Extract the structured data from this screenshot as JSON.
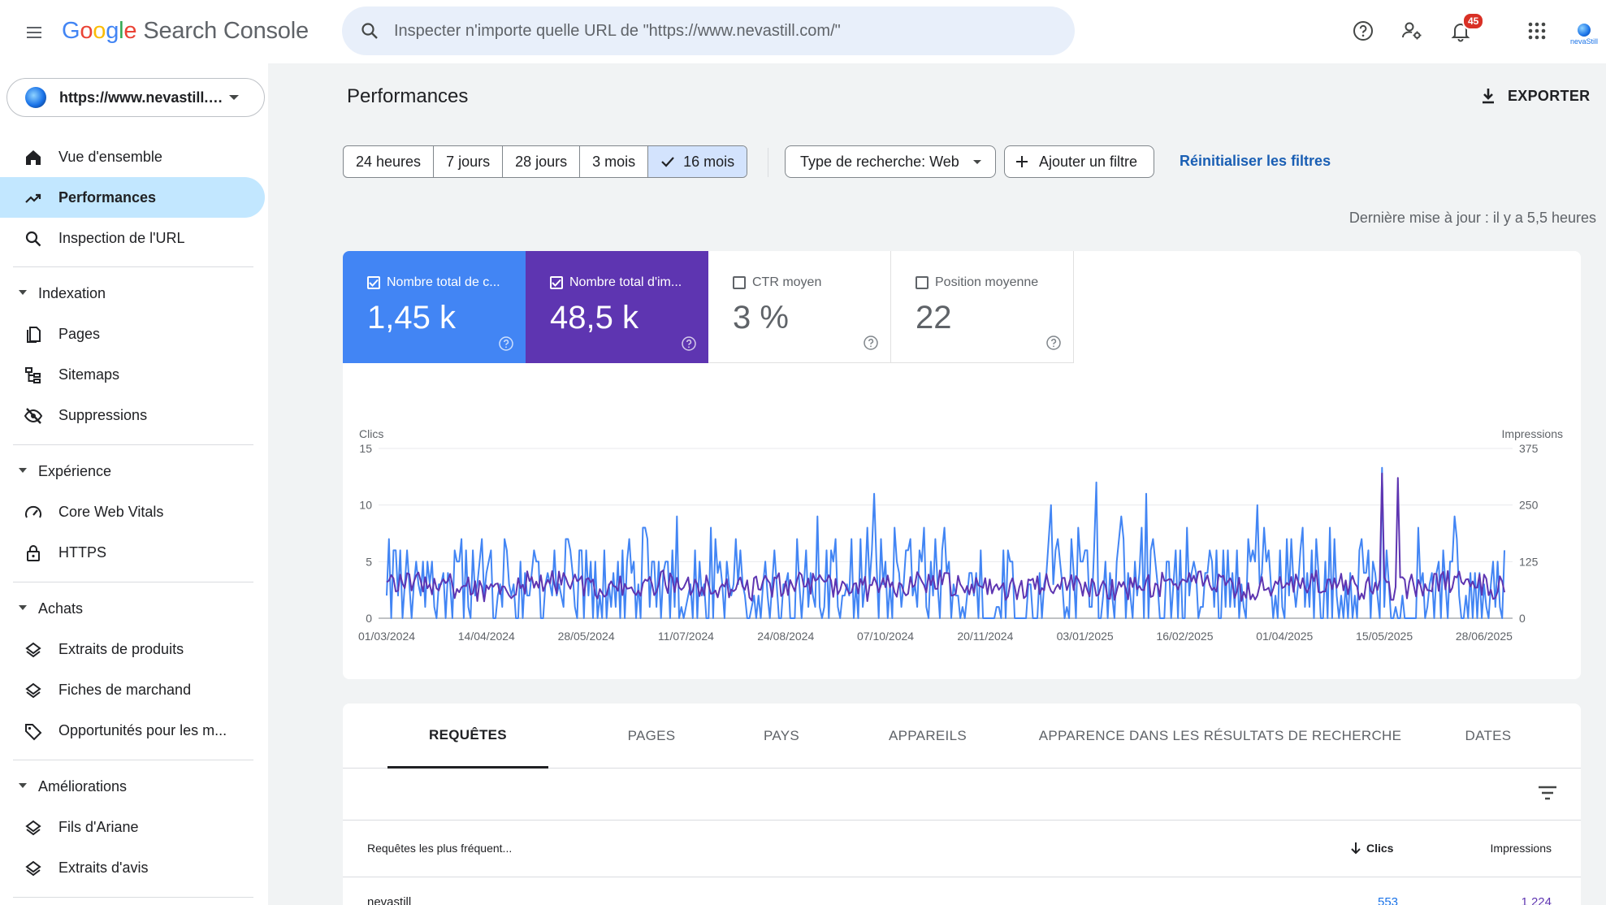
{
  "header": {
    "logo_letters": [
      "G",
      "o",
      "o",
      "g",
      "l",
      "e"
    ],
    "product": "Search Console",
    "search_placeholder": "Inspecter n'importe quelle URL de \"https://www.nevastill.com/\"",
    "notification_count": "45",
    "brand_name": "nevaStill"
  },
  "sidebar": {
    "property_label": "https://www.nevastill.c...",
    "items": {
      "overview": "Vue d'ensemble",
      "performance": "Performances",
      "url_inspection": "Inspection de l'URL"
    },
    "sections": {
      "indexing": {
        "title": "Indexation",
        "pages": "Pages",
        "sitemaps": "Sitemaps",
        "removals": "Suppressions"
      },
      "experience": {
        "title": "Expérience",
        "cwv": "Core Web Vitals",
        "https": "HTTPS"
      },
      "shopping": {
        "title": "Achats",
        "product_snippets": "Extraits de produits",
        "merchant_listings": "Fiches de marchand",
        "opportunities": "Opportunités pour les m..."
      },
      "enhancements": {
        "title": "Améliorations",
        "breadcrumbs": "Fils d'Ariane",
        "review_snippets": "Extraits d'avis"
      }
    }
  },
  "main": {
    "title": "Performances",
    "export_label": "EXPORTER",
    "date_ranges": [
      "24 heures",
      "7 jours",
      "28 jours",
      "3 mois",
      "16 mois"
    ],
    "selected_range": "16 mois",
    "search_type_label": "Type de recherche: Web",
    "add_filter_label": "Ajouter un filtre",
    "reset_filters_label": "Réinitialiser les filtres",
    "last_update": "Dernière mise à jour : il y a 5,5 heures"
  },
  "metrics": {
    "clicks": {
      "label": "Nombre total de c...",
      "value": "1,45 k",
      "checked": true,
      "color": "#4285f4"
    },
    "impressions": {
      "label": "Nombre total d'im...",
      "value": "48,5 k",
      "checked": true,
      "color": "#5e35b1"
    },
    "ctr": {
      "label": "CTR moyen",
      "value": "3 %",
      "checked": false
    },
    "position": {
      "label": "Position moyenne",
      "value": "22",
      "checked": false
    }
  },
  "chart_data": {
    "type": "line",
    "ylabel_left": "Clics",
    "ylabel_right": "Impressions",
    "y_left_ticks": [
      0,
      5,
      10,
      15
    ],
    "y_right_ticks": [
      0,
      125,
      250,
      375
    ],
    "ylim_left": [
      0,
      15
    ],
    "ylim_right": [
      0,
      375
    ],
    "x_labels": [
      "01/03/2024",
      "14/04/2024",
      "28/05/2024",
      "11/07/2024",
      "24/08/2024",
      "07/10/2024",
      "20/11/2024",
      "03/01/2025",
      "16/02/2025",
      "01/04/2025",
      "15/05/2025",
      "28/06/2025"
    ],
    "x_start": "2024-03-01",
    "x_end": "2025-07-07",
    "grid": true,
    "series": [
      {
        "name": "Clics",
        "axis": "left",
        "color": "#4285f4",
        "peaks": {
          "2024-10-02": 11,
          "2025-01-08": 12,
          "2025-05-14": 13.3,
          "2024-12-19": 10,
          "2025-01-30": 11,
          "2025-03-20": 10,
          "2024-07-07": 9,
          "2024-09-07": 9
        }
      },
      {
        "name": "Impressions",
        "axis": "right",
        "color": "#5e35b1",
        "peaks": {
          "2025-05-14": 320,
          "2025-05-21": 310
        }
      }
    ]
  },
  "table": {
    "tabs": [
      "REQUÊTES",
      "PAGES",
      "PAYS",
      "APPAREILS",
      "APPARENCE DANS LES RÉSULTATS DE RECHERCHE",
      "DATES"
    ],
    "columns": {
      "query": "Requêtes les plus fréquent...",
      "clicks": "Clics",
      "impressions": "Impressions"
    },
    "rows": [
      {
        "query": "nevastill",
        "clicks": "553",
        "impressions": "1 224"
      }
    ]
  }
}
